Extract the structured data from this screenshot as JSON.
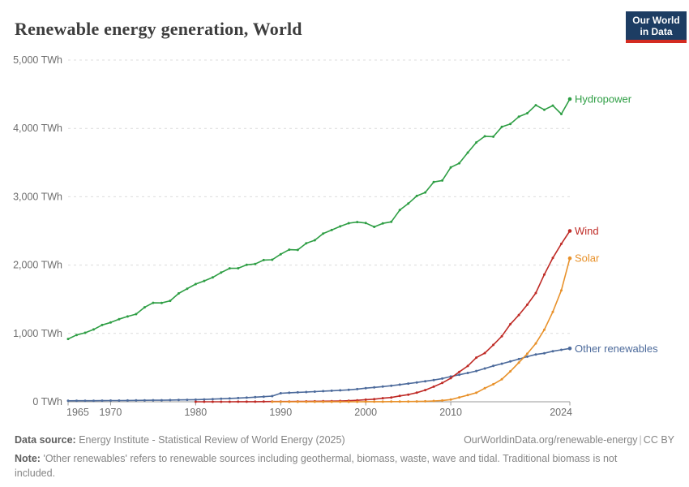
{
  "header": {
    "title": "Renewable energy generation, World",
    "logo": {
      "line1": "Our World",
      "line2": "in Data",
      "bg_color": "#1d3d63",
      "bar_color": "#d42b21"
    }
  },
  "footer": {
    "datasource_label": "Data source:",
    "datasource": "Energy Institute - Statistical Review of World Energy (2025)",
    "link": "OurWorldinData.org/renewable-energy",
    "separator": "|",
    "license": "CC BY",
    "note_label": "Note:",
    "note": "'Other renewables' refers to renewable sources including geothermal, biomass, waste, wave and tidal. Traditional biomass is not included."
  },
  "chart_data": {
    "type": "line",
    "title": "Renewable energy generation, World",
    "unit": "TWh",
    "grid": "dashed-horizontal",
    "legend_position": "end-of-line-labels",
    "x_axis": {
      "min": 1965,
      "max": 2024,
      "ticks": [
        1965,
        1970,
        1980,
        1990,
        2000,
        2010,
        2024
      ]
    },
    "y_axis": {
      "min": 0,
      "max": 5000,
      "ticks": [
        {
          "value": 0,
          "label": "0 TWh"
        },
        {
          "value": 1000,
          "label": "1,000 TWh"
        },
        {
          "value": 2000,
          "label": "2,000 TWh"
        },
        {
          "value": 3000,
          "label": "3,000 TWh"
        },
        {
          "value": 4000,
          "label": "4,000 TWh"
        },
        {
          "value": 5000,
          "label": "5,000 TWh"
        }
      ]
    },
    "series": [
      {
        "name": "Hydropower",
        "color": "#2E9E44",
        "start_year": 1965,
        "values": [
          919,
          978,
          1010,
          1058,
          1124,
          1160,
          1209,
          1248,
          1283,
          1382,
          1448,
          1447,
          1477,
          1585,
          1654,
          1722,
          1768,
          1820,
          1891,
          1952,
          1954,
          2003,
          2017,
          2074,
          2078,
          2159,
          2226,
          2222,
          2320,
          2364,
          2462,
          2513,
          2566,
          2613,
          2630,
          2615,
          2559,
          2610,
          2633,
          2805,
          2900,
          3012,
          3063,
          3216,
          3237,
          3430,
          3490,
          3646,
          3794,
          3885,
          3879,
          4023,
          4065,
          4171,
          4222,
          4340,
          4273,
          4334,
          4210,
          4430
        ]
      },
      {
        "name": "Other renewables",
        "color": "#4C6A9B",
        "start_year": 1965,
        "values": [
          14,
          15,
          15,
          16,
          17,
          18,
          18,
          19,
          20,
          21,
          22,
          23,
          25,
          27,
          29,
          31,
          35,
          39,
          44,
          49,
          55,
          61,
          68,
          75,
          83,
          125,
          132,
          138,
          143,
          149,
          155,
          161,
          168,
          175,
          185,
          200,
          210,
          222,
          235,
          250,
          266,
          283,
          300,
          318,
          340,
          369,
          395,
          422,
          450,
          487,
          525,
          557,
          590,
          625,
          660,
          692,
          710,
          740,
          760,
          780
        ]
      },
      {
        "name": "Wind",
        "color": "#BF2B26",
        "start_year": 1980,
        "values": [
          0.1,
          0.1,
          0.2,
          0.3,
          0.4,
          0.6,
          1.1,
          1.7,
          2.3,
          3.2,
          3.9,
          4.1,
          4.7,
          5.8,
          7.2,
          8.3,
          9.4,
          12,
          16,
          21,
          31,
          38,
          52,
          63,
          85,
          104,
          133,
          171,
          221,
          276,
          346,
          437,
          524,
          646,
          712,
          832,
          960,
          1135,
          1270,
          1420,
          1591,
          1862,
          2105,
          2311,
          2500
        ]
      },
      {
        "name": "Solar",
        "color": "#E8912A",
        "start_year": 1989,
        "values": [
          0.1,
          0.1,
          0.1,
          0.1,
          0.2,
          0.2,
          0.2,
          0.3,
          0.3,
          0.4,
          0.5,
          1.1,
          1.4,
          1.7,
          2.1,
          2.8,
          3.9,
          5,
          6.8,
          11.4,
          19.3,
          32,
          64,
          97,
          132,
          198,
          256,
          329,
          445,
          574,
          703,
          854,
          1055,
          1316,
          1631,
          2100
        ]
      }
    ]
  }
}
